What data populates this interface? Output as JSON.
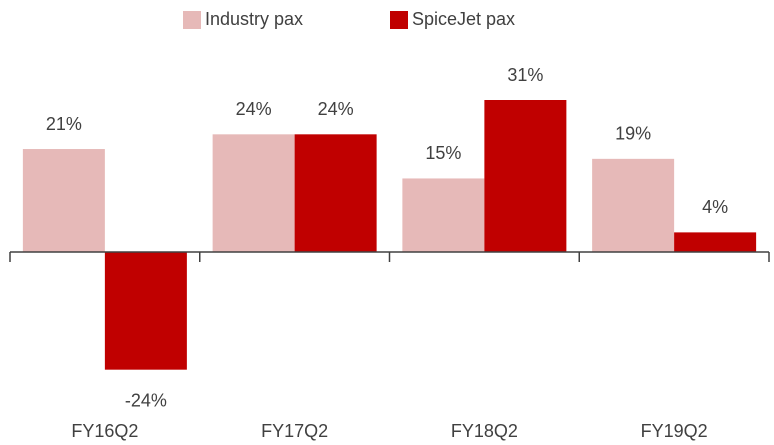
{
  "chart_data": {
    "type": "bar",
    "categories": [
      "FY16Q2",
      "FY17Q2",
      "FY18Q2",
      "FY19Q2"
    ],
    "series": [
      {
        "name": "Industry pax",
        "color": "#e6b9b8",
        "values": [
          21,
          24,
          15,
          19
        ],
        "value_labels": [
          "21%",
          "24%",
          "15%",
          "19%"
        ]
      },
      {
        "name": "SpiceJet pax",
        "color": "#c00000",
        "values": [
          -24,
          24,
          31,
          4
        ],
        "value_labels": [
          "-24%",
          "24%",
          "31%",
          "4%"
        ]
      }
    ],
    "legend": "top"
  }
}
